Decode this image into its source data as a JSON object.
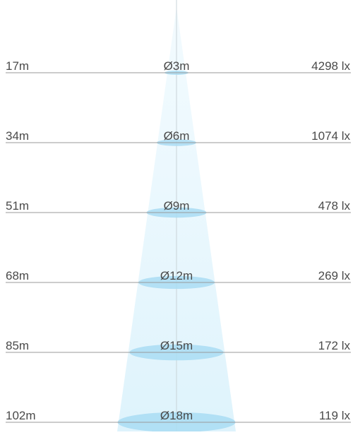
{
  "rows": [
    {
      "distance": "17m",
      "diameter": "Ø3m",
      "illuminance": "4298 lx"
    },
    {
      "distance": "34m",
      "diameter": "Ø6m",
      "illuminance": "1074 lx"
    },
    {
      "distance": "51m",
      "diameter": "Ø9m",
      "illuminance": "478 lx"
    },
    {
      "distance": "68m",
      "diameter": "Ø12m",
      "illuminance": "269 lx"
    },
    {
      "distance": "85m",
      "diameter": "Ø15m",
      "illuminance": "172 lx"
    },
    {
      "distance": "102m",
      "diameter": "Ø18m",
      "illuminance": "119 lx"
    }
  ]
}
